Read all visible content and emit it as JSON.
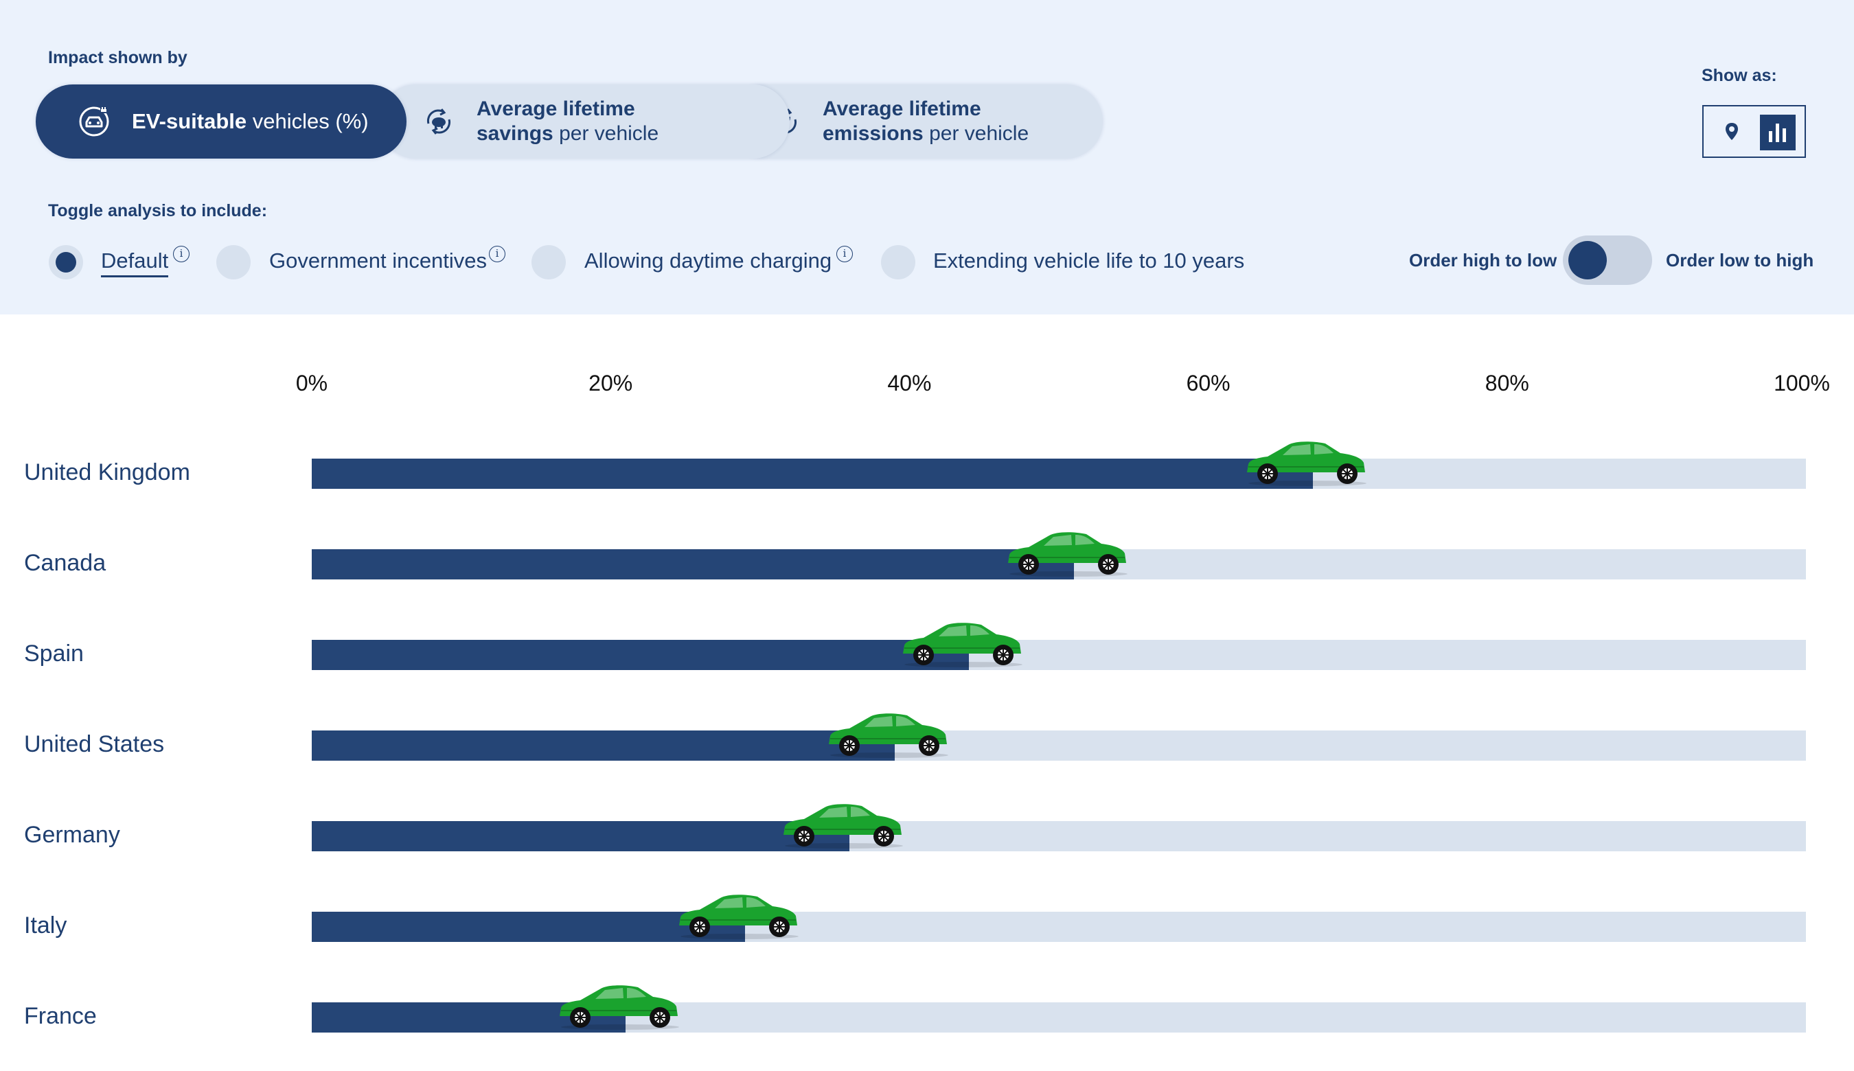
{
  "header": {
    "impact_label": "Impact shown by",
    "show_as_label": "Show as:",
    "toggle_label": "Toggle analysis to include:"
  },
  "tabs": [
    {
      "bold": "EV-suitable",
      "rest": " vehicles (%)",
      "icon": "car-plug-icon",
      "active": true
    },
    {
      "line1": "Average lifetime",
      "bold": "savings",
      "rest": " per vehicle",
      "icon": "piggy-bank-cycle-icon",
      "active": false
    },
    {
      "line1": "Average lifetime",
      "bold": "emissions",
      "rest": " per vehicle",
      "icon": "leaf-cycle-icon",
      "active": false
    }
  ],
  "view_options": {
    "map_icon": "map-pin-icon",
    "bar_icon": "bar-chart-icon",
    "selected": "bar"
  },
  "analysis_options": [
    {
      "label": "Default",
      "selected": true,
      "info": true
    },
    {
      "label": "Government incentives",
      "selected": false,
      "info": true
    },
    {
      "label": "Allowing daytime charging",
      "selected": false,
      "info": true
    },
    {
      "label": "Extending vehicle life to 10 years",
      "selected": false,
      "info": false
    }
  ],
  "info_glyph": "i",
  "order": {
    "high_to_low": "Order high to low",
    "low_to_high": "Order low to high",
    "current": "high_to_low"
  },
  "colors": {
    "bar": "#254576",
    "track": "#d9e2ee",
    "car": "#1aa32e",
    "panel": "#ebf2fc",
    "accent": "#1f3f70"
  },
  "chart_data": {
    "type": "bar",
    "orientation": "horizontal",
    "categories": [
      "United Kingdom",
      "Canada",
      "Spain",
      "United States",
      "Germany",
      "Italy",
      "France"
    ],
    "values": [
      67,
      51,
      44,
      39,
      36,
      29,
      21
    ],
    "xlim": [
      0,
      100
    ],
    "ticks": [
      "0%",
      "20%",
      "40%",
      "60%",
      "80%",
      "100%"
    ],
    "unit": "%",
    "marker_icon": "car-icon"
  }
}
